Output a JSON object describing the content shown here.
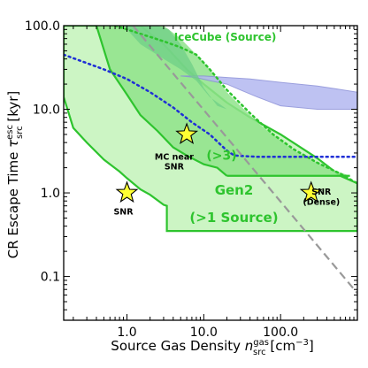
{
  "chart_data": {
    "type": "area",
    "xscale": "log",
    "yscale": "log",
    "xlim": [
      0.15,
      1000
    ],
    "ylim": [
      0.03,
      100
    ],
    "grid": false,
    "x_tick_labels": [
      "1.0",
      "10.0",
      "100.0"
    ],
    "x_ticks": [
      1,
      10,
      100
    ],
    "y_tick_labels": [
      "100.0",
      "10.0",
      "1.0",
      "0.1"
    ],
    "y_ticks": [
      100,
      10,
      1,
      0.1
    ],
    "xlabel": {
      "main": "Source Gas Density ",
      "symbol": "n",
      "sup": "gas",
      "sub": "src",
      "unit_open": " [cm",
      "unit_exp": "−3",
      "unit_close": "]"
    },
    "ylabel": {
      "main": "CR Escape Time ",
      "symbol": "τ",
      "sup": "esc",
      "sub": "src",
      "unit": " [kyr]"
    },
    "colors": {
      "gen2_fill": "#ccf5c4",
      "mid_fill": "#8fe38b",
      "icecube_fill": "#6fcf87",
      "green_line": "#2ec42e",
      "band_fill": "#b3b8f0",
      "band_line": "#8a8fd8",
      "blue_dotted": "#1f2fd6",
      "gray_dashed": "#999999",
      "star_fill": "#ffff33",
      "annot_green": "#2ec42e"
    },
    "series": [
      {
        "name": "Gen2 (>1 Source)",
        "kind": "region",
        "x": [
          0.15,
          0.2,
          0.3,
          0.5,
          0.8,
          1.0,
          1.5,
          2.0,
          3.0,
          3.3,
          3.3,
          1000,
          1000,
          600,
          300,
          100,
          40,
          20,
          10,
          6,
          4,
          3,
          2,
          1.5,
          1.2,
          1.0,
          0.6,
          0.15
        ],
        "y": [
          14,
          6,
          4,
          2.5,
          1.8,
          1.5,
          1.1,
          0.95,
          0.72,
          0.7,
          0.35,
          0.35,
          1.3,
          1.6,
          2.6,
          5,
          8,
          12,
          20,
          30,
          45,
          60,
          80,
          100,
          100,
          100,
          100,
          100
        ]
      },
      {
        "name": "Gen2 (>3)",
        "kind": "region",
        "x": [
          0.4,
          0.6,
          1.0,
          1.5,
          2.5,
          4.0,
          6.0,
          10,
          15,
          20,
          800,
          400,
          150,
          60,
          30,
          20,
          12,
          8,
          5,
          3,
          2.0,
          1.5,
          1.0,
          0.6,
          0.4
        ],
        "y": [
          100,
          30,
          15,
          8.5,
          5.5,
          3.5,
          2.8,
          2.2,
          2.0,
          1.6,
          1.6,
          2.0,
          3.2,
          6,
          11,
          16,
          30,
          45,
          70,
          100,
          100,
          100,
          100,
          100,
          100
        ]
      },
      {
        "name": "IceCube (Source)",
        "kind": "dotted_boundary",
        "x": [
          0.7,
          1.5,
          3,
          5,
          8,
          12,
          20,
          40,
          80,
          150,
          300,
          600,
          1000
        ],
        "y": [
          100,
          80,
          65,
          55,
          45,
          30,
          17,
          9,
          5,
          3.3,
          2.3,
          1.7,
          1.3
        ]
      },
      {
        "name": "icecube_shaded",
        "kind": "region",
        "x": [
          0.9,
          1.5,
          3,
          5,
          8,
          12,
          20,
          15,
          10,
          7,
          5,
          3.5,
          2.5
        ],
        "y": [
          100,
          60,
          40,
          30,
          22,
          14,
          10,
          11,
          18,
          35,
          60,
          90,
          100
        ]
      },
      {
        "name": "band",
        "kind": "region",
        "x": [
          5,
          10,
          20,
          40,
          100,
          300,
          1000,
          1000,
          300,
          100,
          50,
          30,
          20,
          12,
          8
        ],
        "y": [
          25,
          25,
          24,
          23,
          21,
          19,
          16,
          10,
          10,
          11,
          14,
          17,
          20,
          22,
          24
        ]
      },
      {
        "name": "blue_dotted",
        "kind": "dotted",
        "x": [
          0.15,
          0.5,
          1,
          2,
          4,
          7,
          12,
          20,
          25,
          50,
          100,
          300,
          1000
        ],
        "y": [
          45,
          30,
          23,
          16,
          10.5,
          7,
          5,
          3.2,
          2.8,
          2.7,
          2.7,
          2.7,
          2.7
        ]
      },
      {
        "name": "gray_dashed",
        "kind": "dashed",
        "x": [
          1.2,
          1000
        ],
        "y": [
          100,
          0.063
        ]
      },
      {
        "name": "gen2_top_solid",
        "kind": "solid",
        "x": [
          0.4,
          0.6,
          1.0,
          1.5,
          2.5,
          4.0,
          6.0,
          10,
          15,
          20
        ],
        "y": [
          100,
          30,
          15,
          8.5,
          5.5,
          3.5,
          2.8,
          2.2,
          2.0,
          1.6
        ]
      }
    ],
    "stars": [
      {
        "label": "SNR",
        "x": 1.0,
        "y": 1.0
      },
      {
        "label": "MC near SNR",
        "x": 6.0,
        "y": 5.0
      },
      {
        "label": "SNR (Dense)",
        "x": 250,
        "y": 1.0
      }
    ],
    "annotations": [
      {
        "text": "IceCube (Source)",
        "x": 30,
        "y": 66
      },
      {
        "text": "Gen2",
        "x": 20,
        "y": 0.95
      },
      {
        "text": "(>1 Source)",
        "x": 20,
        "y": 0.45
      },
      {
        "text": "(>3)",
        "x": 20,
        "y": 2.5
      },
      {
        "text": "MC near",
        "x": 7,
        "y": 2.5
      },
      {
        "text": "SNR",
        "x": 7,
        "y": 1.9
      },
      {
        "text": "SNR",
        "x": 1.0,
        "y": 0.55
      },
      {
        "text": "SNR",
        "x": 420,
        "y": 0.95
      },
      {
        "text": "(Dense)",
        "x": 420,
        "y": 0.72
      }
    ]
  }
}
